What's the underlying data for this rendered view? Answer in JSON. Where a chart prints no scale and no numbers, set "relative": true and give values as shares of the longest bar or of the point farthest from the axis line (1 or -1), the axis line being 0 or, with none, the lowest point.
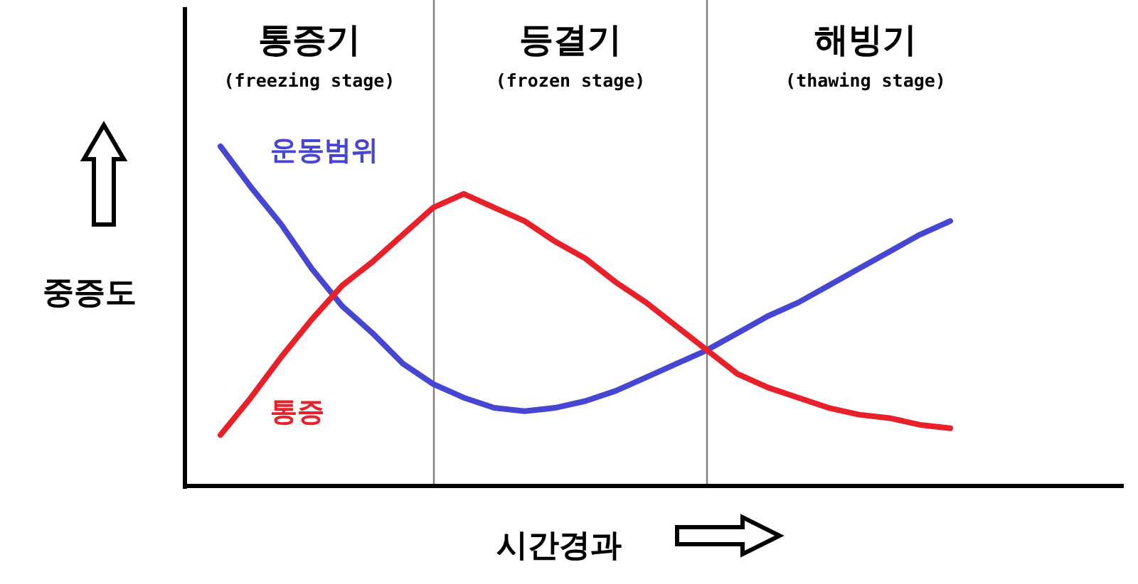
{
  "chart_data": {
    "type": "line",
    "relative": true,
    "xlabel": "시간경과",
    "ylabel": "중증도",
    "categories": [
      null,
      null,
      null,
      null,
      null,
      null,
      null,
      null,
      null,
      null,
      null,
      null,
      null,
      null,
      null,
      null,
      null,
      null,
      null,
      null,
      null,
      null,
      null,
      null,
      null
    ],
    "series": [
      {
        "name": "운동범위",
        "color": "#4646d2",
        "values": [
          1,
          0.88,
          0.77,
          0.64,
          0.53,
          0.45,
          0.36,
          0.3,
          0.26,
          0.23,
          0.22,
          0.23,
          0.25,
          0.28,
          0.32,
          0.36,
          0.4,
          0.45,
          0.5,
          0.54,
          0.59,
          0.64,
          0.69,
          0.74,
          0.78
        ]
      },
      {
        "name": "통증",
        "color": "#e8202a",
        "values": [
          0.15,
          0.26,
          0.38,
          0.49,
          0.59,
          0.66,
          0.74,
          0.82,
          0.86,
          0.82,
          0.78,
          0.72,
          0.67,
          0.6,
          0.54,
          0.47,
          0.4,
          0.33,
          0.29,
          0.26,
          0.23,
          0.21,
          0.2,
          0.18,
          0.17
        ]
      }
    ],
    "annotations": [
      "통증기",
      "(freezing stage)",
      "등결기",
      "(frozen stage)",
      "해빙기",
      "(thawing stage)"
    ]
  }
}
